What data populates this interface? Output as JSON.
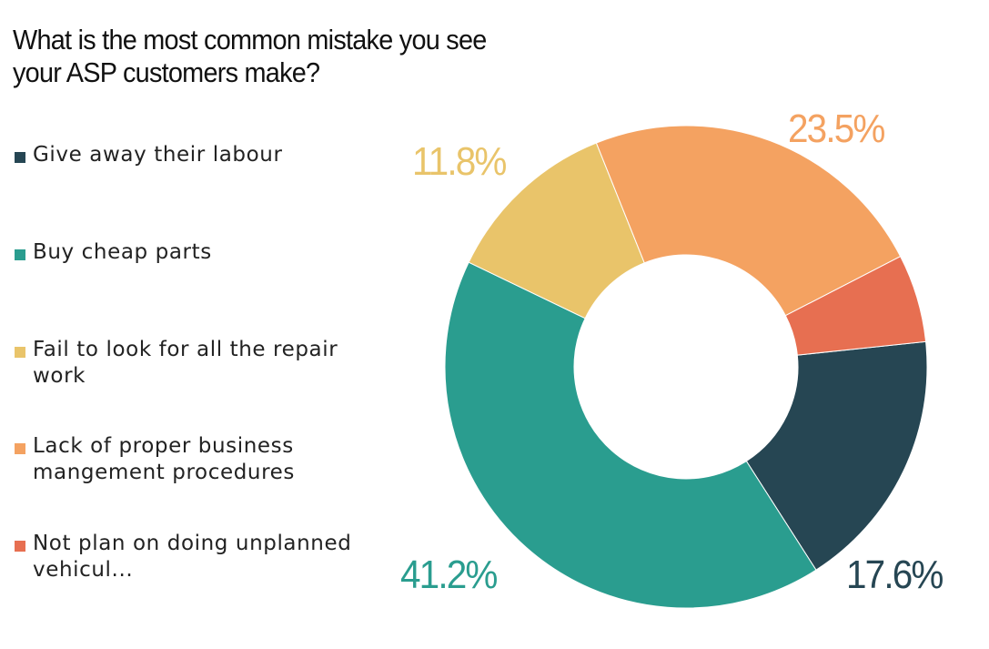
{
  "title": "What is the most common mistake you see your ASP customers make?",
  "title_lines": [
    "What is the most common mistake you see",
    "your ASP customers make?"
  ],
  "legend": {
    "items": [
      {
        "label": "Give away their labour",
        "color": "#264653"
      },
      {
        "label": "Buy cheap parts",
        "color": "#2a9d8f"
      },
      {
        "label": "Fail to look for all the repair work",
        "color": "#e9c46a"
      },
      {
        "label": "Lack of proper business mangement procedures",
        "color": "#f4a261"
      },
      {
        "label": "Not plan on doing unplanned vehicul...",
        "color": "#e76f51"
      }
    ]
  },
  "labels": {
    "give_away": "17.6%",
    "cheap_parts": "41.2%",
    "fail_look": "11.8%",
    "lack_mgmt": "23.5%"
  },
  "chart_data": {
    "type": "pie",
    "subtype": "donut",
    "title": "What is the most common mistake you see your ASP customers make?",
    "categories": [
      "Give away their labour",
      "Buy cheap parts",
      "Fail to look for all the repair work",
      "Lack of proper business mangement procedures",
      "Not plan on doing unplanned vehicul..."
    ],
    "values": [
      17.6,
      41.2,
      11.8,
      23.5,
      5.9
    ],
    "data_labels": [
      "17.6%",
      "41.2%",
      "11.8%",
      "23.5%",
      ""
    ],
    "colors": [
      "#264653",
      "#2a9d8f",
      "#e9c46a",
      "#f4a261",
      "#e76f51"
    ],
    "legend_position": "left"
  }
}
